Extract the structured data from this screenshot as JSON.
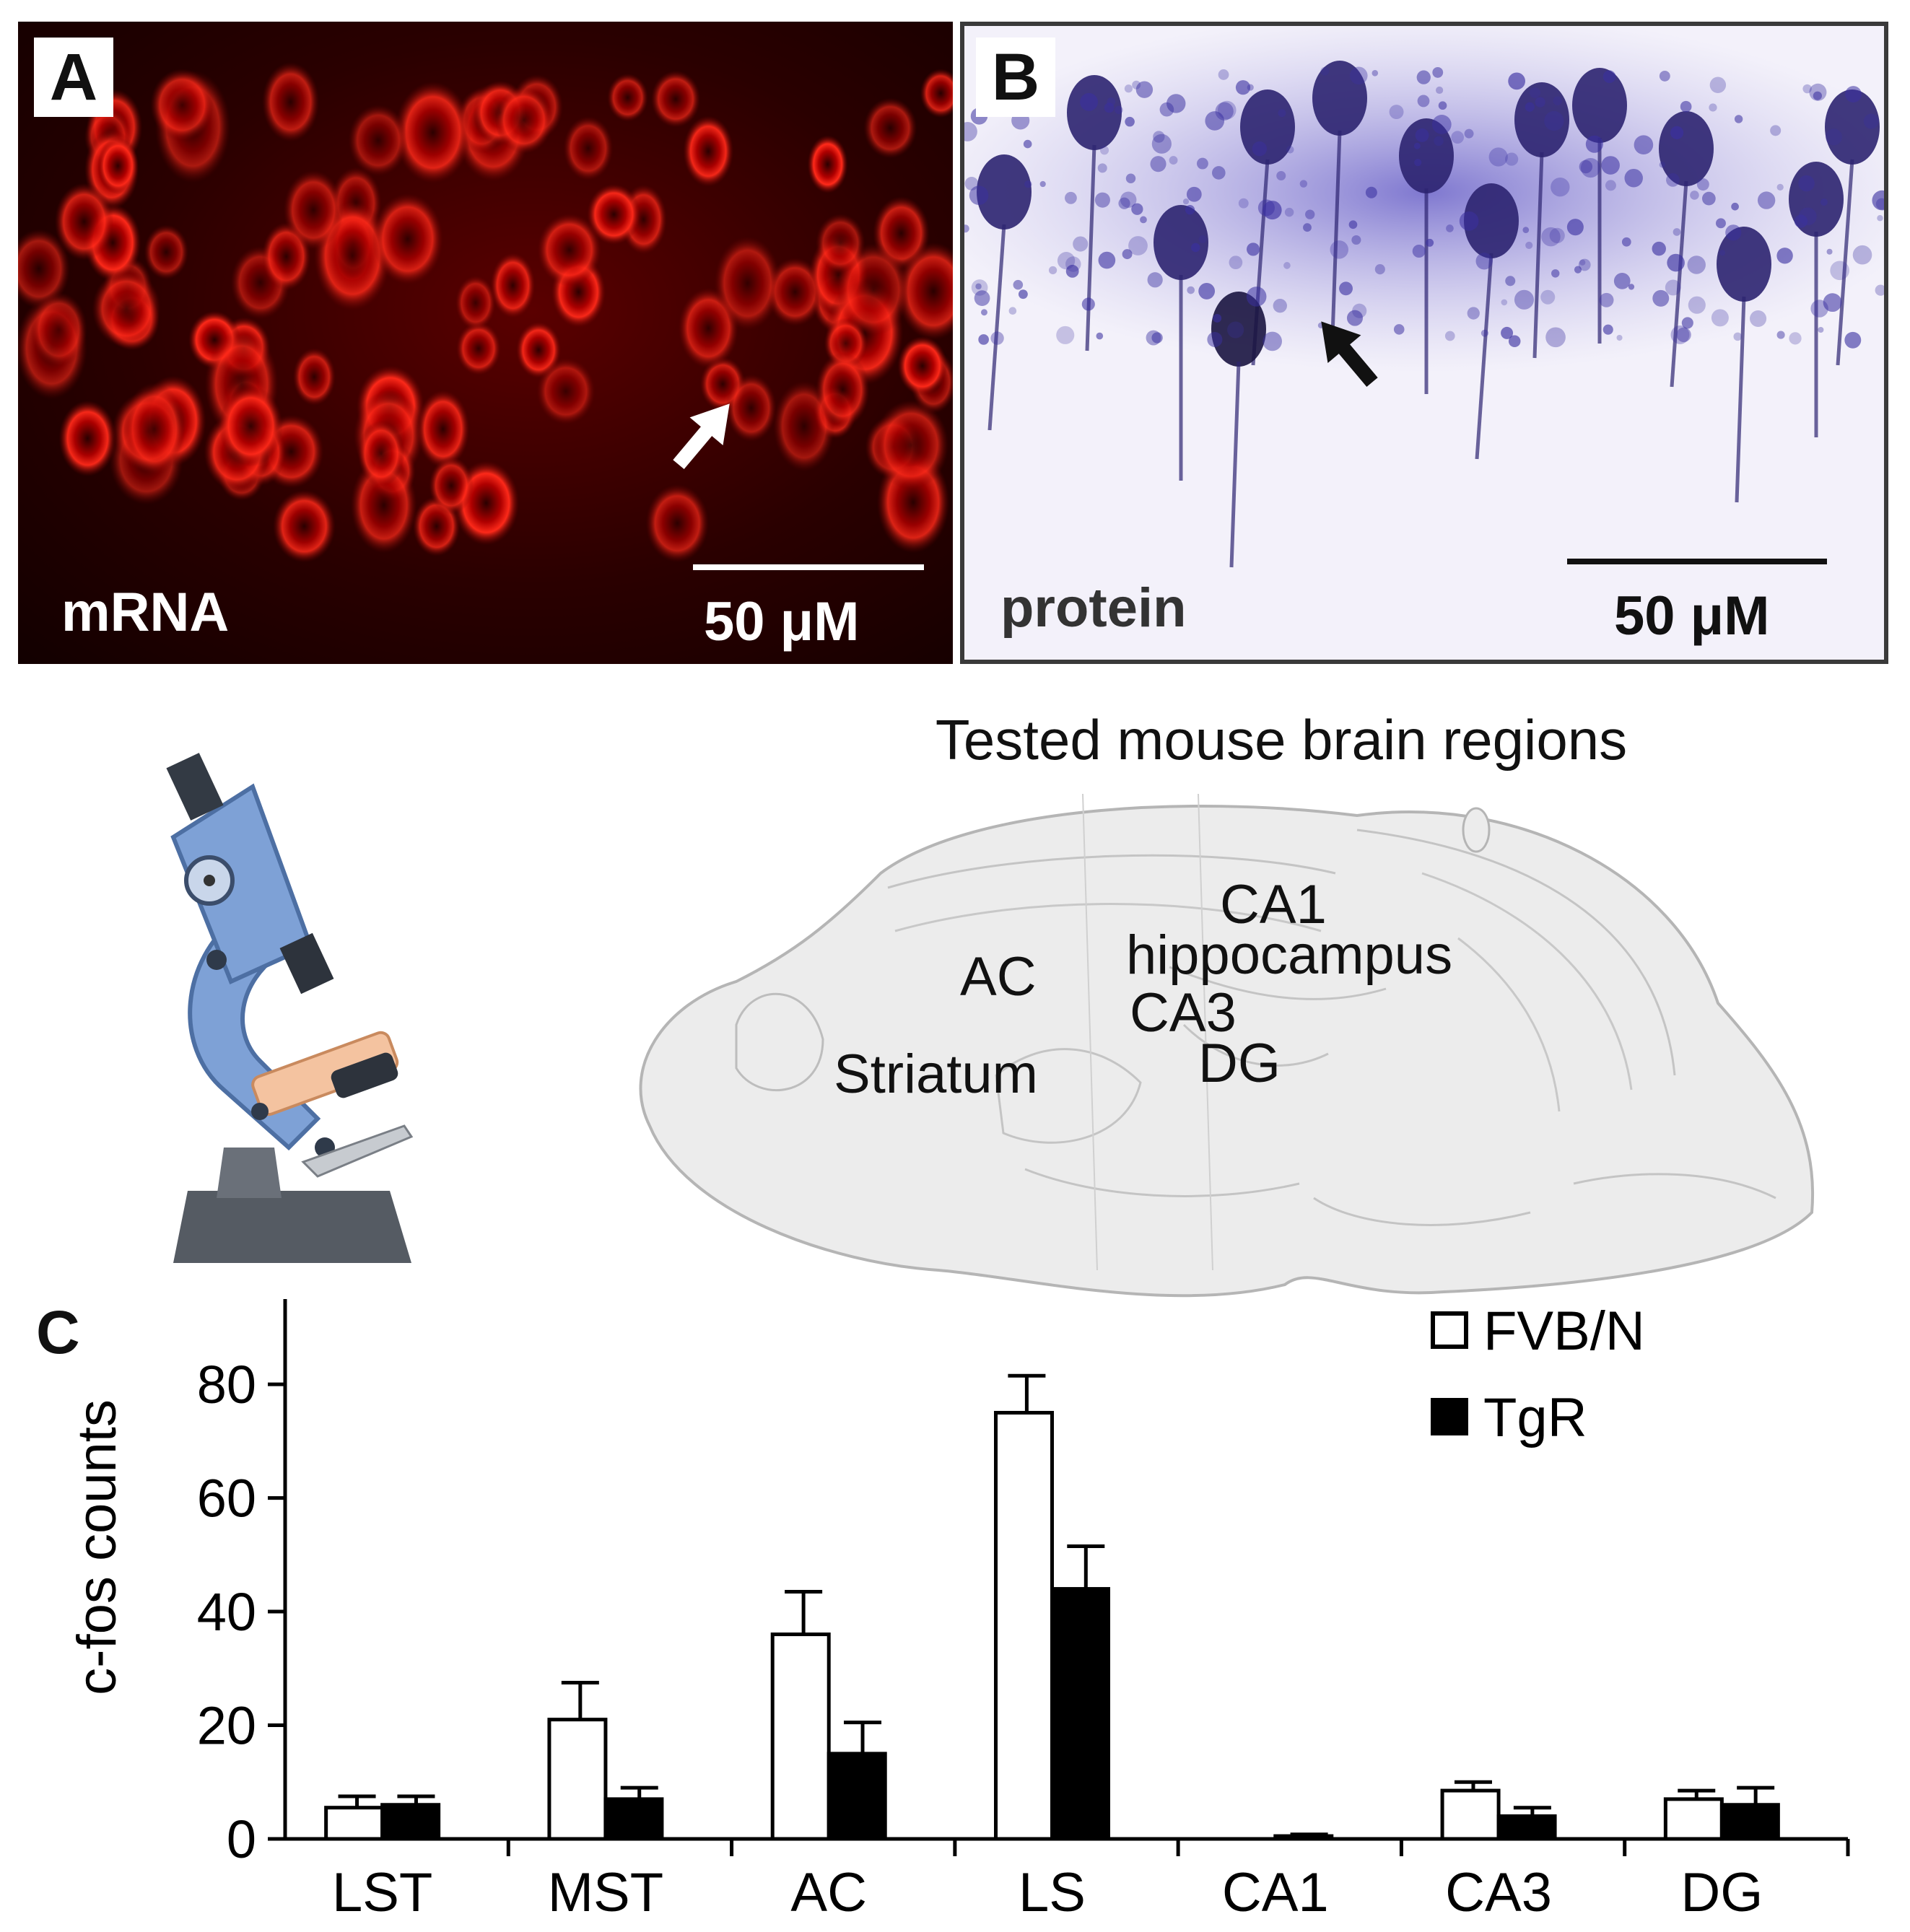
{
  "panel_a": {
    "letter": "A",
    "caption": "mRNA",
    "scale_label": "50 μM"
  },
  "panel_b": {
    "letter": "B",
    "caption": "protein",
    "scale_label": "50 μM"
  },
  "brain": {
    "title": "Tested mouse brain regions",
    "labels": {
      "ca1": "CA1",
      "hippocampus": "hippocampus",
      "ac": "AC",
      "ca3": "CA3",
      "dg": "DG",
      "striatum": "Striatum"
    }
  },
  "panel_c": {
    "letter": "C"
  },
  "chart_data": {
    "type": "bar",
    "title": "",
    "xlabel": "",
    "ylabel": "c-fos counts",
    "ylim": [
      0,
      95
    ],
    "yticks": [
      0,
      20,
      40,
      60,
      80
    ],
    "categories": [
      "LST",
      "MST",
      "AC",
      "LS",
      "CA1",
      "CA3",
      "DG"
    ],
    "legend_position": "top-right",
    "series": [
      {
        "name": "FVB/N",
        "color": "#ffffff",
        "values": [
          5.5,
          21,
          36,
          75,
          0,
          8.5,
          7
        ],
        "errors": [
          2,
          6.5,
          7.5,
          6.5,
          0,
          1.5,
          1.5
        ]
      },
      {
        "name": "TgR",
        "color": "#000000",
        "values": [
          6,
          7,
          15,
          44,
          0.5,
          4,
          6
        ],
        "errors": [
          1.5,
          2,
          5.5,
          7.5,
          0.3,
          1.5,
          3
        ]
      }
    ]
  }
}
